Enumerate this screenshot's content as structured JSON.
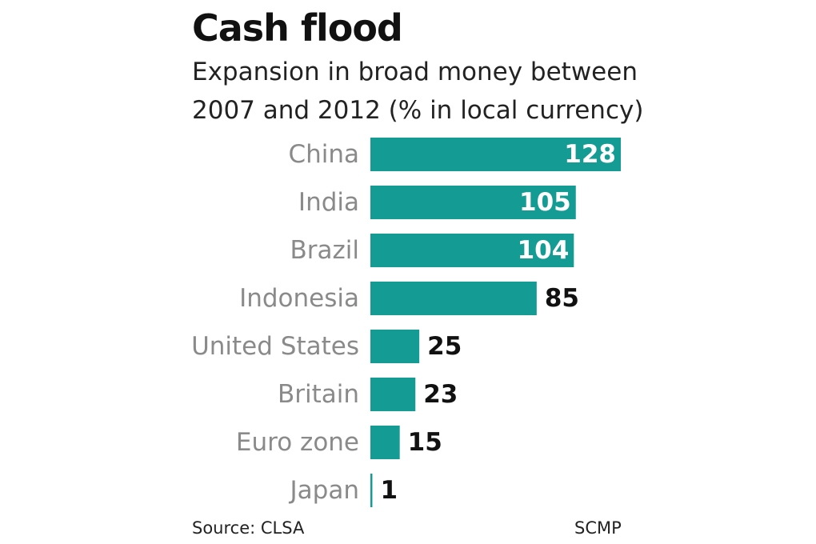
{
  "chart_data": {
    "type": "bar",
    "orientation": "horizontal",
    "title": "Cash flood",
    "subtitle": [
      "Expansion in broad money between",
      "2007 and 2012 (% in local currency)"
    ],
    "categories": [
      "China",
      "India",
      "Brazil",
      "Indonesia",
      "United States",
      "Britain",
      "Euro zone",
      "Japan"
    ],
    "values": [
      128,
      105,
      104,
      85,
      25,
      23,
      15,
      1
    ],
    "xlabel": "",
    "ylabel": "",
    "xlim": [
      0,
      128
    ],
    "grid": false,
    "legend": "none",
    "bar_color": "#149c94",
    "value_label_inside_color": "#ffffff",
    "value_label_outside_color": "#111111"
  },
  "footer": {
    "source": "Source: CLSA",
    "credit": "SCMP"
  }
}
